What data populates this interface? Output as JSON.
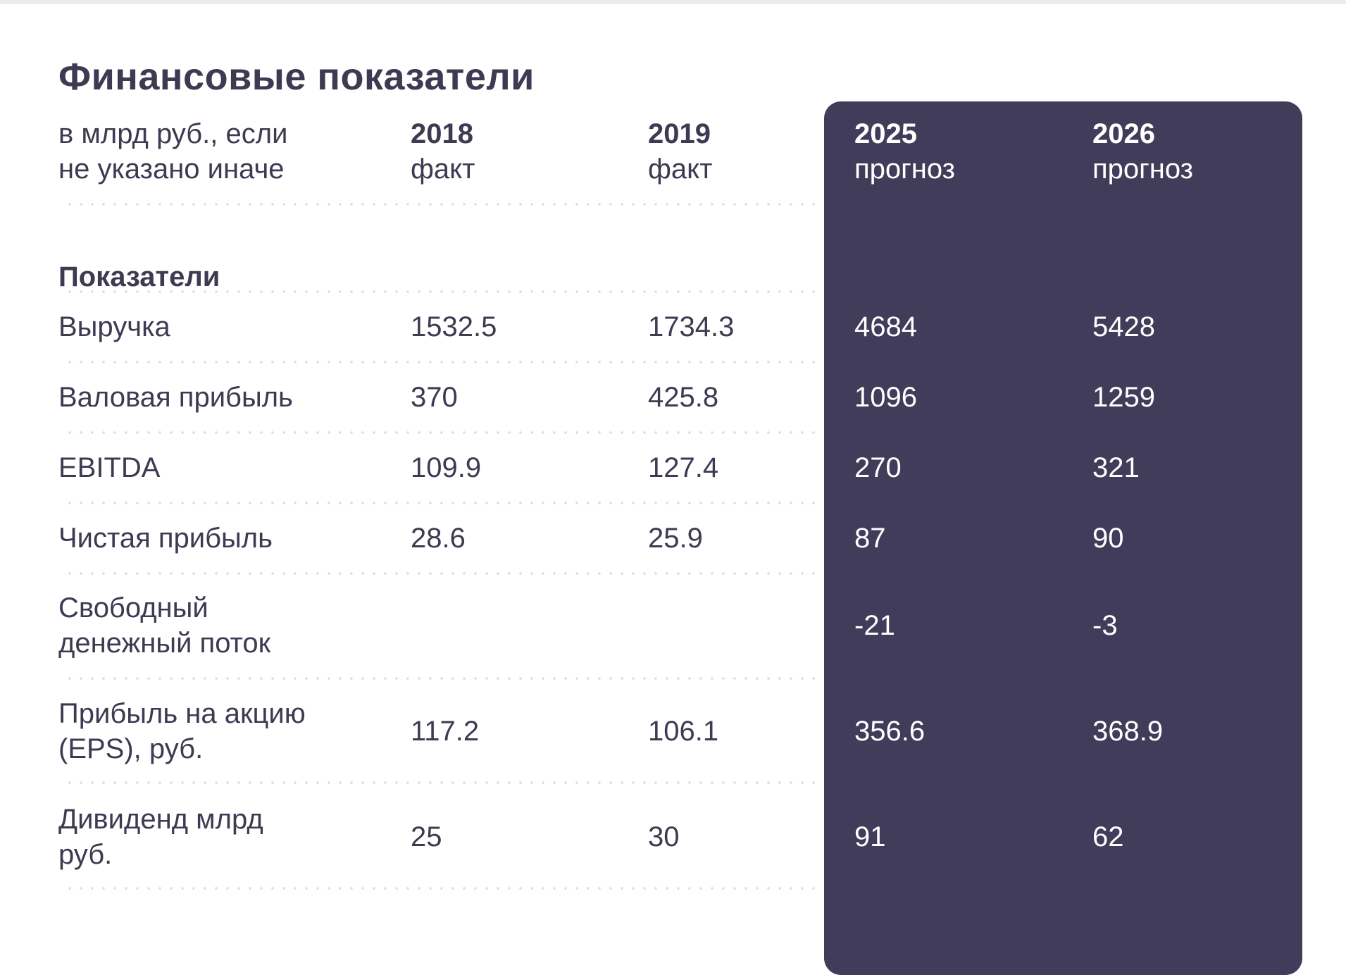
{
  "title": "Финансовые показатели",
  "header": {
    "units_line1": "в млрд руб., если",
    "units_line2": "не указано иначе",
    "columns": [
      {
        "year": "2018",
        "kind": "факт"
      },
      {
        "year": "2019",
        "kind": "факт"
      },
      {
        "year": "2025",
        "kind": "прогноз"
      },
      {
        "year": "2026",
        "kind": "прогноз"
      }
    ]
  },
  "section_label": "Показатели",
  "rows": [
    {
      "label1": "Выручка",
      "label2": "",
      "values": [
        "1532.5",
        "1734.3",
        "4684",
        "5428"
      ]
    },
    {
      "label1": "Валовая прибыль",
      "label2": "",
      "values": [
        "370",
        "425.8",
        "1096",
        "1259"
      ]
    },
    {
      "label1": "EBITDA",
      "label2": "",
      "values": [
        "109.9",
        "127.4",
        "270",
        "321"
      ]
    },
    {
      "label1": "Чистая прибыль",
      "label2": "",
      "values": [
        "28.6",
        "25.9",
        "87",
        "90"
      ]
    },
    {
      "label1": "Свободный",
      "label2": "денежный поток",
      "values": [
        "",
        "",
        "-21",
        "-3"
      ]
    },
    {
      "label1": "Прибыль на акцию",
      "label2": "(EPS), руб.",
      "values": [
        "117.2",
        "106.1",
        "356.6",
        "368.9"
      ]
    },
    {
      "label1": "Дивиденд млрд",
      "label2": "руб.",
      "values": [
        "25",
        "30",
        "91",
        "62"
      ]
    }
  ],
  "colors": {
    "text": "#3d3a52",
    "forecast_panel": "#403c5a",
    "forecast_text": "#ffffff",
    "divider": "#dcdce2"
  }
}
